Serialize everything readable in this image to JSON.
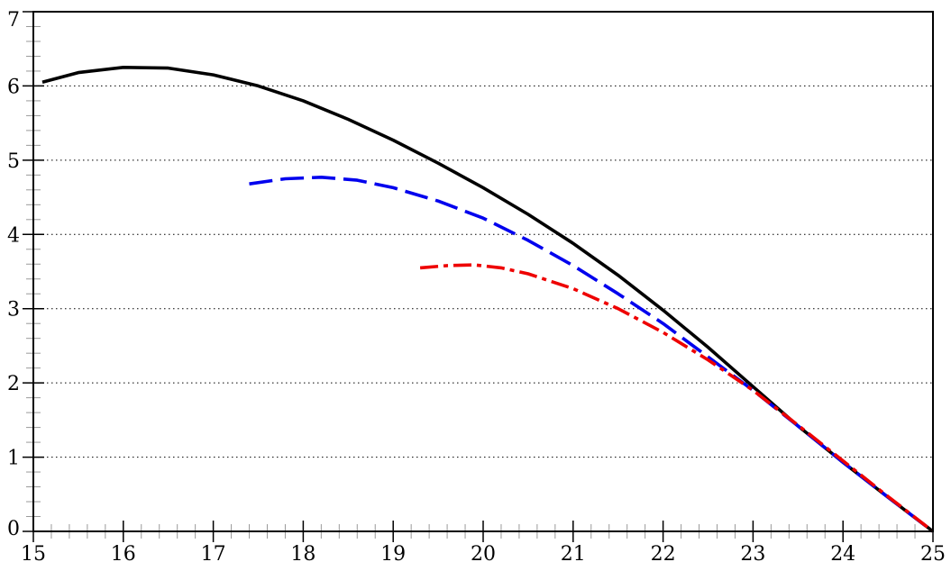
{
  "chart_data": {
    "type": "line",
    "title": "",
    "xlabel": "",
    "ylabel": "",
    "xlim": [
      15,
      25
    ],
    "ylim": [
      0,
      7
    ],
    "x_ticks": [
      15,
      16,
      17,
      18,
      19,
      20,
      21,
      22,
      23,
      24,
      25
    ],
    "y_ticks": [
      0,
      1,
      2,
      3,
      4,
      5,
      6,
      7
    ],
    "x_tick_labels": [
      "15",
      "16",
      "17",
      "18",
      "19",
      "20",
      "21",
      "22",
      "23",
      "24",
      "25"
    ],
    "y_tick_labels": [
      "0",
      "1",
      "2",
      "3",
      "4",
      "5",
      "6",
      "7"
    ],
    "grid": "horizontal dotted at y = 1..6",
    "series": [
      {
        "style": "solid",
        "color": "#000000",
        "x": [
          15.1,
          15.5,
          16.0,
          16.5,
          17.0,
          17.5,
          18.0,
          18.5,
          19.0,
          19.5,
          20.0,
          20.5,
          21.0,
          21.5,
          22.0,
          22.5,
          23.0,
          23.5,
          24.0,
          24.5,
          25.0
        ],
        "y": [
          6.05,
          6.18,
          6.25,
          6.24,
          6.15,
          6.0,
          5.8,
          5.55,
          5.27,
          4.96,
          4.63,
          4.27,
          3.88,
          3.45,
          2.98,
          2.48,
          1.95,
          1.42,
          0.93,
          0.46,
          0.0
        ]
      },
      {
        "style": "dashed",
        "color": "#0000ee",
        "x": [
          17.4,
          17.8,
          18.2,
          18.6,
          19.0,
          19.5,
          20.0,
          20.5,
          21.0,
          21.5,
          22.0,
          22.5,
          23.0,
          23.5,
          24.0,
          24.5,
          25.0
        ],
        "y": [
          4.68,
          4.75,
          4.77,
          4.73,
          4.63,
          4.45,
          4.22,
          3.92,
          3.58,
          3.2,
          2.8,
          2.35,
          1.9,
          1.42,
          0.93,
          0.46,
          0.0
        ]
      },
      {
        "style": "dash-dot",
        "color": "#ee0000",
        "x": [
          19.3,
          19.6,
          19.9,
          20.2,
          20.5,
          21.0,
          21.5,
          22.0,
          22.5,
          23.0,
          23.5,
          24.0,
          24.5,
          25.0
        ],
        "y": [
          3.55,
          3.58,
          3.59,
          3.55,
          3.47,
          3.27,
          3.0,
          2.68,
          2.31,
          1.9,
          1.43,
          0.95,
          0.47,
          0.0
        ]
      }
    ]
  }
}
